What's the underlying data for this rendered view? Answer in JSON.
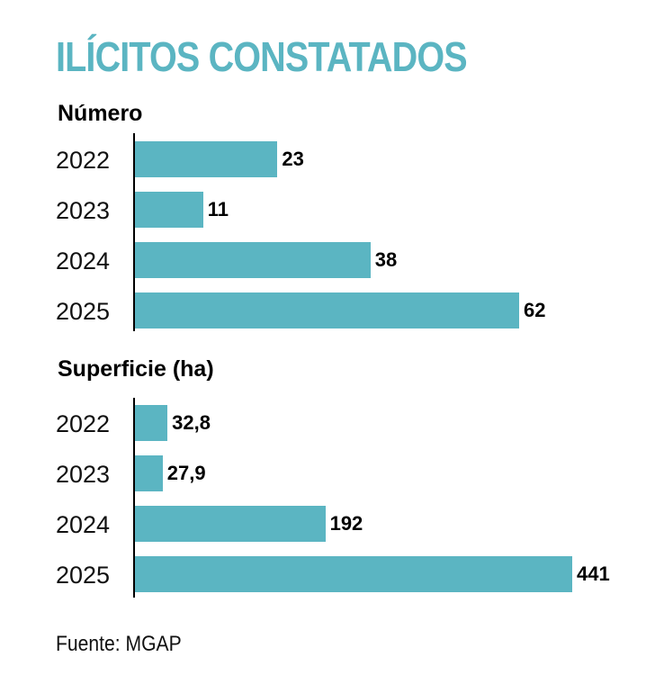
{
  "title": "ILÍCITOS CONSTATADOS",
  "source": "Fuente: MGAP",
  "colors": {
    "bar": "#5bb5c2",
    "title": "#5bb5c2",
    "axis": "#000000"
  },
  "chart_data": [
    {
      "type": "bar",
      "orientation": "horizontal",
      "title": "Número",
      "categories": [
        "2022",
        "2023",
        "2024",
        "2025"
      ],
      "values": [
        23,
        11,
        38,
        62
      ],
      "value_labels": [
        "23",
        "11",
        "38",
        "62"
      ]
    },
    {
      "type": "bar",
      "orientation": "horizontal",
      "title": "Superficie (ha)",
      "categories": [
        "2022",
        "2023",
        "2024",
        "2025"
      ],
      "values": [
        32.8,
        27.9,
        192,
        441
      ],
      "value_labels": [
        "32,8",
        "27,9",
        "192",
        "441"
      ]
    }
  ]
}
